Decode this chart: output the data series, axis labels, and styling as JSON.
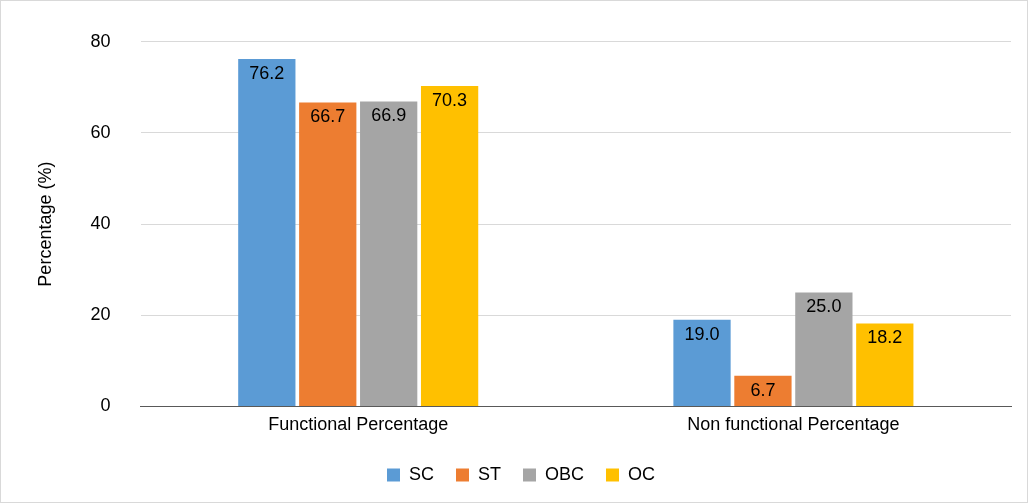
{
  "chart_data": {
    "type": "bar",
    "ylabel": "Percentage (%)",
    "categories": [
      "Functional Percentage",
      "Non functional Percentage"
    ],
    "series": [
      {
        "name": "SC",
        "color": "#5b9bd5",
        "values": [
          76.2,
          19.0
        ],
        "value_labels": [
          "76.2",
          "19.0"
        ]
      },
      {
        "name": "ST",
        "color": "#ed7d31",
        "values": [
          66.7,
          6.7
        ],
        "value_labels": [
          "66.7",
          "6.7"
        ]
      },
      {
        "name": "OBC",
        "color": "#a5a5a5",
        "values": [
          66.9,
          25.0
        ],
        "value_labels": [
          "66.9",
          "25.0"
        ]
      },
      {
        "name": "OC",
        "color": "#ffc000",
        "values": [
          70.3,
          18.2
        ],
        "value_labels": [
          "70.3",
          "18.2"
        ]
      }
    ],
    "ylim": [
      0,
      80
    ],
    "yticks": [
      0,
      20,
      40,
      60,
      80
    ],
    "grid": "y",
    "legend": "bottom"
  }
}
